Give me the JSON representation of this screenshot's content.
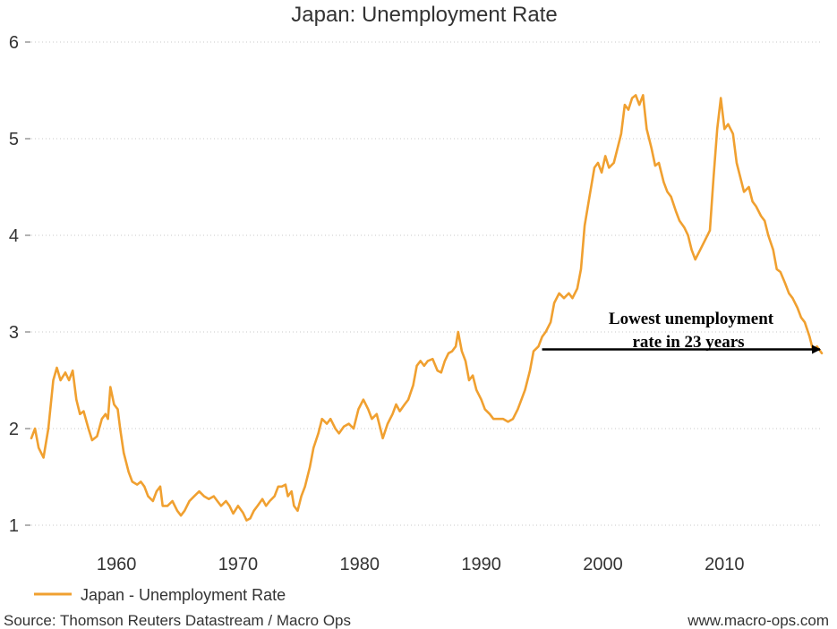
{
  "chart_data": {
    "type": "line",
    "title": "Japan: Unemployment Rate",
    "xlabel": "",
    "ylabel": "",
    "xlim": [
      1953.0,
      2018.0
    ],
    "ylim": [
      1,
      6
    ],
    "x_ticks": [
      1960,
      1970,
      1980,
      1990,
      2000,
      2010
    ],
    "y_ticks": [
      1,
      2,
      3,
      4,
      5,
      6
    ],
    "grid": "horizontal-dotted",
    "legend": "bottom-left",
    "series": [
      {
        "name": "Japan - Unemployment Rate",
        "color": "#f0a030",
        "points": [
          [
            1953.0,
            1.9
          ],
          [
            1953.3,
            2.0
          ],
          [
            1953.6,
            1.8
          ],
          [
            1954.0,
            1.7
          ],
          [
            1954.4,
            2.0
          ],
          [
            1954.8,
            2.5
          ],
          [
            1955.1,
            2.63
          ],
          [
            1955.4,
            2.5
          ],
          [
            1955.8,
            2.58
          ],
          [
            1956.1,
            2.5
          ],
          [
            1956.4,
            2.6
          ],
          [
            1956.7,
            2.3
          ],
          [
            1957.0,
            2.15
          ],
          [
            1957.3,
            2.18
          ],
          [
            1957.7,
            2.0
          ],
          [
            1958.0,
            1.88
          ],
          [
            1958.4,
            1.92
          ],
          [
            1958.8,
            2.1
          ],
          [
            1959.1,
            2.15
          ],
          [
            1959.3,
            2.1
          ],
          [
            1959.5,
            2.43
          ],
          [
            1959.8,
            2.25
          ],
          [
            1960.1,
            2.2
          ],
          [
            1960.3,
            2.0
          ],
          [
            1960.6,
            1.75
          ],
          [
            1961.0,
            1.55
          ],
          [
            1961.3,
            1.45
          ],
          [
            1961.7,
            1.42
          ],
          [
            1962.0,
            1.45
          ],
          [
            1962.3,
            1.4
          ],
          [
            1962.6,
            1.3
          ],
          [
            1963.0,
            1.25
          ],
          [
            1963.3,
            1.35
          ],
          [
            1963.6,
            1.4
          ],
          [
            1963.8,
            1.2
          ],
          [
            1964.2,
            1.2
          ],
          [
            1964.6,
            1.25
          ],
          [
            1965.0,
            1.15
          ],
          [
            1965.3,
            1.1
          ],
          [
            1965.6,
            1.15
          ],
          [
            1966.0,
            1.25
          ],
          [
            1966.4,
            1.3
          ],
          [
            1966.8,
            1.35
          ],
          [
            1967.2,
            1.3
          ],
          [
            1967.6,
            1.27
          ],
          [
            1968.0,
            1.3
          ],
          [
            1968.3,
            1.25
          ],
          [
            1968.6,
            1.2
          ],
          [
            1969.0,
            1.25
          ],
          [
            1969.3,
            1.2
          ],
          [
            1969.6,
            1.12
          ],
          [
            1970.0,
            1.2
          ],
          [
            1970.4,
            1.13
          ],
          [
            1970.7,
            1.05
          ],
          [
            1971.0,
            1.07
          ],
          [
            1971.3,
            1.15
          ],
          [
            1971.6,
            1.2
          ],
          [
            1972.0,
            1.27
          ],
          [
            1972.3,
            1.2
          ],
          [
            1972.6,
            1.25
          ],
          [
            1973.0,
            1.3
          ],
          [
            1973.3,
            1.4
          ],
          [
            1973.6,
            1.4
          ],
          [
            1973.9,
            1.42
          ],
          [
            1974.1,
            1.3
          ],
          [
            1974.4,
            1.35
          ],
          [
            1974.6,
            1.2
          ],
          [
            1974.9,
            1.15
          ],
          [
            1975.2,
            1.3
          ],
          [
            1975.5,
            1.4
          ],
          [
            1975.9,
            1.6
          ],
          [
            1976.2,
            1.8
          ],
          [
            1976.6,
            1.95
          ],
          [
            1976.9,
            2.1
          ],
          [
            1977.3,
            2.05
          ],
          [
            1977.6,
            2.1
          ],
          [
            1978.0,
            2.0
          ],
          [
            1978.3,
            1.95
          ],
          [
            1978.7,
            2.02
          ],
          [
            1979.1,
            2.05
          ],
          [
            1979.5,
            2.0
          ],
          [
            1979.9,
            2.2
          ],
          [
            1980.3,
            2.3
          ],
          [
            1980.7,
            2.2
          ],
          [
            1981.0,
            2.1
          ],
          [
            1981.4,
            2.15
          ],
          [
            1981.7,
            2.0
          ],
          [
            1981.9,
            1.9
          ],
          [
            1982.3,
            2.05
          ],
          [
            1982.7,
            2.15
          ],
          [
            1983.0,
            2.25
          ],
          [
            1983.3,
            2.18
          ],
          [
            1983.7,
            2.25
          ],
          [
            1984.0,
            2.3
          ],
          [
            1984.4,
            2.45
          ],
          [
            1984.7,
            2.65
          ],
          [
            1985.0,
            2.7
          ],
          [
            1985.3,
            2.65
          ],
          [
            1985.6,
            2.7
          ],
          [
            1986.0,
            2.72
          ],
          [
            1986.4,
            2.6
          ],
          [
            1986.7,
            2.58
          ],
          [
            1987.0,
            2.7
          ],
          [
            1987.3,
            2.78
          ],
          [
            1987.6,
            2.8
          ],
          [
            1987.9,
            2.85
          ],
          [
            1988.1,
            3.0
          ],
          [
            1988.4,
            2.8
          ],
          [
            1988.7,
            2.7
          ],
          [
            1989.0,
            2.5
          ],
          [
            1989.3,
            2.55
          ],
          [
            1989.6,
            2.4
          ],
          [
            1990.0,
            2.3
          ],
          [
            1990.3,
            2.2
          ],
          [
            1990.7,
            2.15
          ],
          [
            1991.0,
            2.1
          ],
          [
            1991.4,
            2.1
          ],
          [
            1991.8,
            2.1
          ],
          [
            1992.2,
            2.07
          ],
          [
            1992.6,
            2.1
          ],
          [
            1993.0,
            2.2
          ],
          [
            1993.3,
            2.3
          ],
          [
            1993.6,
            2.4
          ],
          [
            1994.0,
            2.6
          ],
          [
            1994.3,
            2.8
          ],
          [
            1994.7,
            2.85
          ],
          [
            1995.0,
            2.95
          ],
          [
            1995.3,
            3.0
          ],
          [
            1995.7,
            3.1
          ],
          [
            1996.0,
            3.3
          ],
          [
            1996.4,
            3.4
          ],
          [
            1996.8,
            3.35
          ],
          [
            1997.2,
            3.4
          ],
          [
            1997.5,
            3.35
          ],
          [
            1997.9,
            3.45
          ],
          [
            1998.2,
            3.65
          ],
          [
            1998.5,
            4.1
          ],
          [
            1998.9,
            4.4
          ],
          [
            1999.3,
            4.7
          ],
          [
            1999.6,
            4.75
          ],
          [
            1999.9,
            4.65
          ],
          [
            2000.2,
            4.82
          ],
          [
            2000.5,
            4.7
          ],
          [
            2000.9,
            4.75
          ],
          [
            2001.2,
            4.9
          ],
          [
            2001.5,
            5.05
          ],
          [
            2001.8,
            5.35
          ],
          [
            2002.1,
            5.3
          ],
          [
            2002.4,
            5.42
          ],
          [
            2002.7,
            5.45
          ],
          [
            2003.0,
            5.35
          ],
          [
            2003.3,
            5.45
          ],
          [
            2003.6,
            5.1
          ],
          [
            2004.0,
            4.9
          ],
          [
            2004.3,
            4.72
          ],
          [
            2004.6,
            4.75
          ],
          [
            2005.0,
            4.55
          ],
          [
            2005.3,
            4.45
          ],
          [
            2005.6,
            4.4
          ],
          [
            2006.0,
            4.25
          ],
          [
            2006.3,
            4.15
          ],
          [
            2006.7,
            4.08
          ],
          [
            2007.0,
            4.0
          ],
          [
            2007.3,
            3.85
          ],
          [
            2007.6,
            3.75
          ],
          [
            2008.0,
            3.85
          ],
          [
            2008.4,
            3.95
          ],
          [
            2008.8,
            4.05
          ],
          [
            2009.1,
            4.6
          ],
          [
            2009.4,
            5.1
          ],
          [
            2009.7,
            5.42
          ],
          [
            2010.0,
            5.1
          ],
          [
            2010.3,
            5.15
          ],
          [
            2010.7,
            5.05
          ],
          [
            2011.0,
            4.75
          ],
          [
            2011.3,
            4.6
          ],
          [
            2011.6,
            4.45
          ],
          [
            2012.0,
            4.5
          ],
          [
            2012.3,
            4.35
          ],
          [
            2012.6,
            4.3
          ],
          [
            2013.0,
            4.2
          ],
          [
            2013.3,
            4.15
          ],
          [
            2013.6,
            4.0
          ],
          [
            2014.0,
            3.85
          ],
          [
            2014.3,
            3.65
          ],
          [
            2014.6,
            3.62
          ],
          [
            2015.0,
            3.5
          ],
          [
            2015.3,
            3.4
          ],
          [
            2015.6,
            3.35
          ],
          [
            2016.0,
            3.25
          ],
          [
            2016.3,
            3.15
          ],
          [
            2016.6,
            3.1
          ],
          [
            2017.0,
            2.95
          ],
          [
            2017.3,
            2.8
          ],
          [
            2017.6,
            2.85
          ],
          [
            2018.0,
            2.78
          ]
        ]
      }
    ],
    "annotation": {
      "lines": [
        "Lowest unemployment",
        "rate in 23 years"
      ],
      "arrow_from": [
        1995.0,
        2.82
      ],
      "arrow_to": [
        2018.0,
        2.82
      ]
    }
  },
  "footer": {
    "source": "Source: Thomson Reuters Datastream / Macro Ops",
    "website": "www.macro-ops.com"
  }
}
